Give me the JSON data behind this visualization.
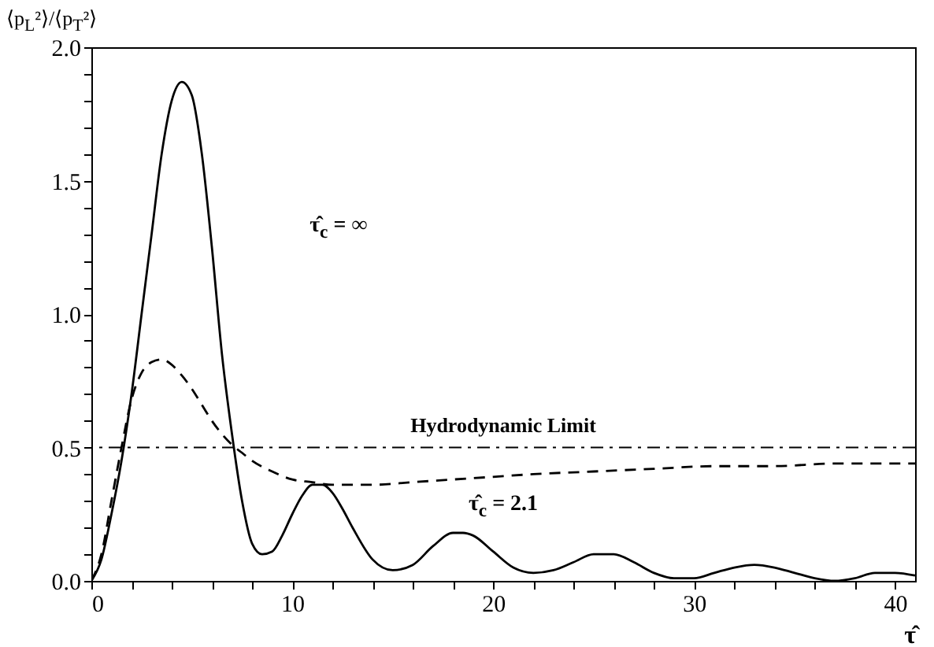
{
  "chart_data": {
    "type": "line",
    "ylabel": "⟨p$_{L}$²⟩/⟨p$_{T}$²⟩",
    "xlabel": "τ̂",
    "series": [
      {
        "color": "#000000",
        "line_style": "solid",
        "x": [
          0,
          0.5,
          1,
          1.5,
          2,
          2.5,
          3,
          3.5,
          4,
          4.5,
          5,
          5.5,
          6,
          6.5,
          7,
          7.5,
          8,
          8.5,
          9,
          9.5,
          10,
          10.5,
          11,
          11.5,
          12,
          12.5,
          13,
          14,
          15,
          16,
          17,
          18,
          18.5,
          19,
          20,
          21,
          22,
          23,
          24,
          25,
          26,
          27,
          28,
          29,
          30,
          31,
          32,
          33,
          34,
          35,
          36,
          37,
          38,
          39,
          40,
          41
        ],
        "values": [
          0,
          0.08,
          0.25,
          0.45,
          0.7,
          1.0,
          1.3,
          1.6,
          1.8,
          1.87,
          1.82,
          1.6,
          1.25,
          0.85,
          0.55,
          0.3,
          0.14,
          0.1,
          0.11,
          0.17,
          0.25,
          0.32,
          0.36,
          0.36,
          0.33,
          0.27,
          0.2,
          0.08,
          0.04,
          0.06,
          0.13,
          0.18,
          0.18,
          0.17,
          0.11,
          0.05,
          0.03,
          0.04,
          0.07,
          0.1,
          0.1,
          0.07,
          0.03,
          0.01,
          0.01,
          0.03,
          0.05,
          0.06,
          0.05,
          0.03,
          0.01,
          0.0,
          0.01,
          0.03,
          0.03,
          0.02
        ]
      },
      {
        "color": "#000000",
        "line_style": "dashed",
        "x": [
          0,
          0.5,
          1,
          1.5,
          2,
          2.5,
          3,
          3.5,
          4,
          4.5,
          5,
          5.5,
          6,
          6.5,
          7,
          7.5,
          8,
          9,
          10,
          11,
          12,
          13,
          14,
          16,
          18,
          20,
          22,
          25,
          28,
          31,
          34,
          37,
          41
        ],
        "values": [
          0,
          0.1,
          0.3,
          0.5,
          0.68,
          0.78,
          0.82,
          0.83,
          0.81,
          0.77,
          0.72,
          0.66,
          0.6,
          0.55,
          0.51,
          0.48,
          0.45,
          0.41,
          0.38,
          0.37,
          0.36,
          0.36,
          0.36,
          0.37,
          0.38,
          0.39,
          0.4,
          0.41,
          0.42,
          0.43,
          0.43,
          0.44,
          0.44
        ]
      }
    ],
    "ref_lines": [
      {
        "axis": "y",
        "value": 0.5,
        "label": "Hydrodynamic Limit",
        "color": "#000000",
        "line_style": "dash-dot"
      }
    ],
    "annotations": [
      "τ̂$_{c}$ = ∞",
      "τ̂$_{c}$ = 2.1"
    ],
    "xlim": [
      0,
      41
    ],
    "ylim": [
      0,
      2.0
    ],
    "xticks": [
      0,
      {
        "value": 2,
        "label": null
      },
      {
        "value": 4,
        "label": null
      },
      {
        "value": 6,
        "label": null
      },
      {
        "value": 8,
        "label": null
      },
      10,
      {
        "value": 12,
        "label": null
      },
      {
        "value": 14,
        "label": null
      },
      {
        "value": 16,
        "label": null
      },
      {
        "value": 18,
        "label": null
      },
      20,
      {
        "value": 22,
        "label": null
      },
      {
        "value": 24,
        "label": null
      },
      {
        "value": 26,
        "label": null
      },
      {
        "value": 28,
        "label": null
      },
      30,
      {
        "value": 32,
        "label": null
      },
      {
        "value": 34,
        "label": null
      },
      {
        "value": 36,
        "label": null
      },
      {
        "value": 38,
        "label": null
      },
      40
    ],
    "yticks": [
      {
        "value": 0,
        "label": "0.0"
      },
      {
        "value": 0.1,
        "label": null
      },
      {
        "value": 0.2,
        "label": null
      },
      {
        "value": 0.3,
        "label": null
      },
      {
        "value": 0.4,
        "label": null
      },
      {
        "value": 0.5,
        "label": "0.5"
      },
      {
        "value": 0.6,
        "label": null
      },
      {
        "value": 0.7,
        "label": null
      },
      {
        "value": 0.8,
        "label": null
      },
      {
        "value": 0.9,
        "label": null
      },
      {
        "value": 1.0,
        "label": "1.0"
      },
      {
        "value": 1.1,
        "label": null
      },
      {
        "value": 1.2,
        "label": null
      },
      {
        "value": 1.3,
        "label": null
      },
      {
        "value": 1.4,
        "label": null
      },
      {
        "value": 1.5,
        "label": "1.5"
      },
      {
        "value": 1.6,
        "label": null
      },
      {
        "value": 1.7,
        "label": null
      },
      {
        "value": 1.8,
        "label": null
      },
      {
        "value": 1.9,
        "label": null
      },
      {
        "value": 2.0,
        "label": "2.0"
      }
    ],
    "grid": false
  }
}
